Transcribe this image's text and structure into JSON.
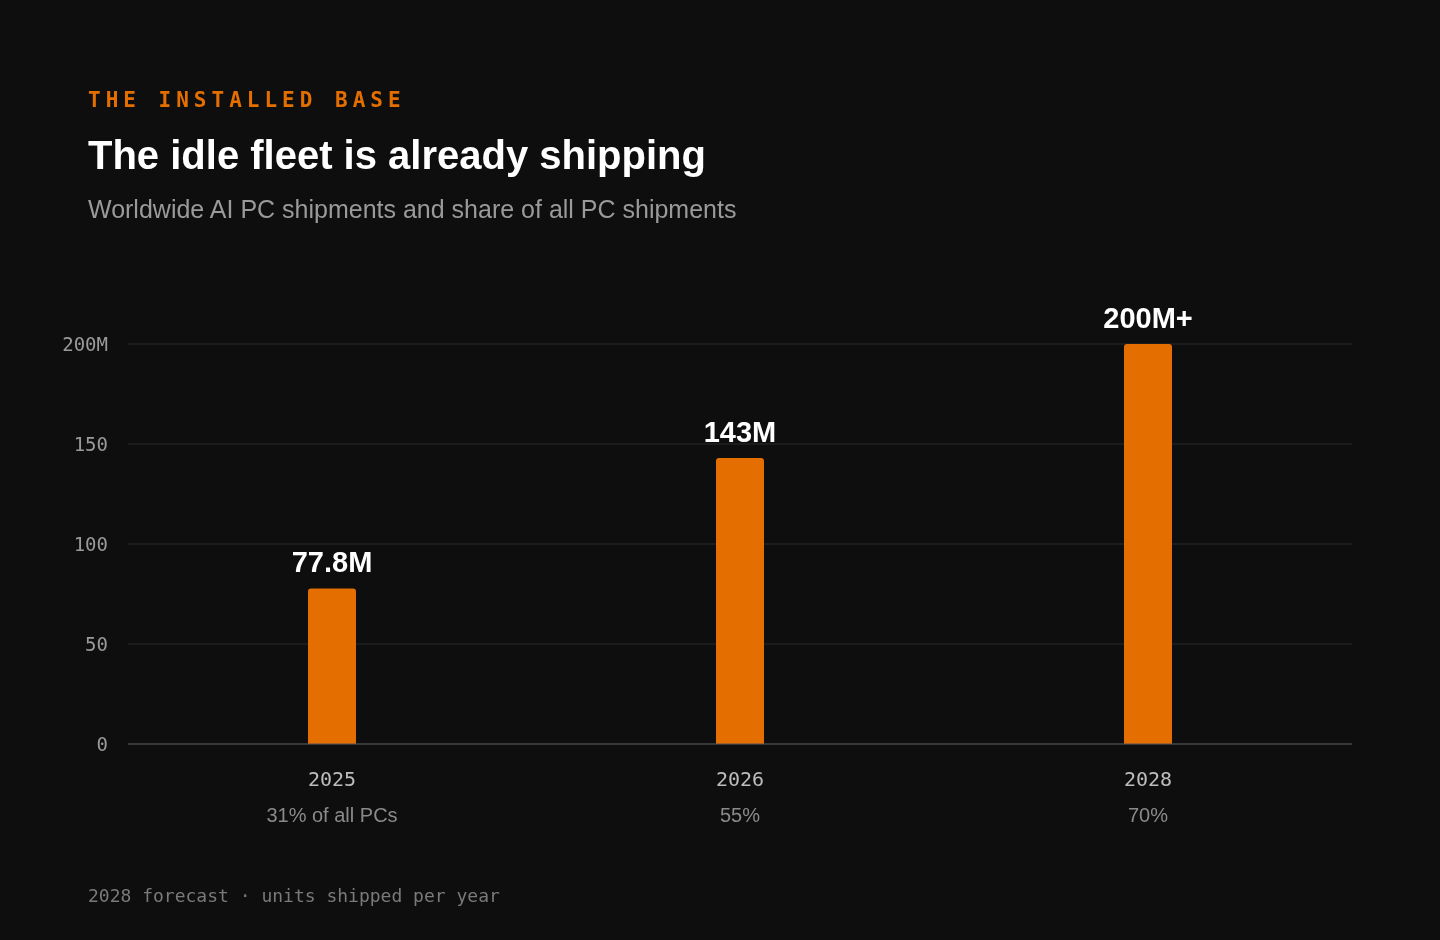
{
  "chart_data": {
    "type": "bar",
    "title": "The idle fleet is already shipping",
    "subtitle": "Worldwide AI PC shipments and share of all PC shipments",
    "categories": [
      "2025",
      "2026",
      "2028"
    ],
    "values": [
      77.8,
      143,
      200
    ],
    "value_labels": [
      "77.8M",
      "143M",
      "200M+"
    ],
    "color": "#e46f00",
    "ylim": [
      0,
      200
    ],
    "yticks": [
      0,
      50,
      100,
      150,
      {
        "value": 200,
        "label": "200M"
      }
    ],
    "grid": "y",
    "annotations": [
      "THE INSTALLED BASE",
      "31% of all PCs",
      "55%",
      "70%",
      "2028 forecast · units shipped per year"
    ]
  }
}
